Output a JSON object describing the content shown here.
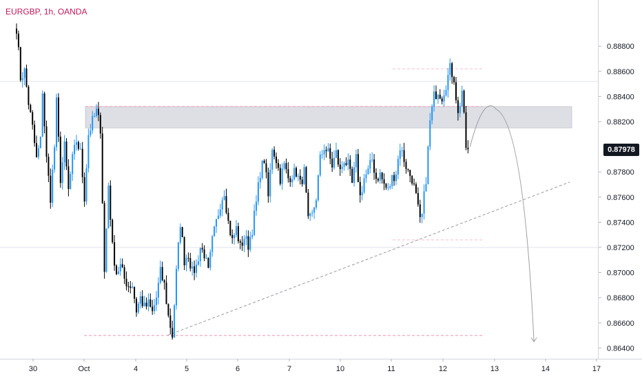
{
  "symbol": {
    "title": "EURGBP, 1h, OANDA"
  },
  "last_price": {
    "label": "0.87978",
    "value": 0.87978,
    "bg_color": "#131722"
  },
  "colors": {
    "up": "#2196f3",
    "down": "#000000",
    "resistance_zone": "#d1d4dc",
    "pink_line": "#f48fb1",
    "projection": "#9e9e9e"
  },
  "chart_data": {
    "type": "candlestick",
    "title": "EURGBP, 1h, OANDA",
    "xlabel": "",
    "ylabel": "",
    "ylim": [
      0.8626,
      0.8892
    ],
    "grid": true,
    "y_ticks": [
      "0.88800",
      "0.88600",
      "0.88400",
      "0.88200",
      "0.87800",
      "0.87600",
      "0.87400",
      "0.87200",
      "0.87000",
      "0.86800",
      "0.86600",
      "0.86400"
    ],
    "x_ticks": [
      "30",
      "Oct",
      "4",
      "5",
      "6",
      "7",
      "10",
      "11",
      "12",
      "13",
      "14",
      "17"
    ],
    "close_path": [
      [
        0,
        0.8895
      ],
      [
        2,
        0.8855
      ],
      [
        4,
        0.886
      ],
      [
        6,
        0.8835
      ],
      [
        8,
        0.8815
      ],
      [
        10,
        0.879
      ],
      [
        12,
        0.8805
      ],
      [
        13,
        0.8845
      ],
      [
        15,
        0.879
      ],
      [
        17,
        0.876
      ],
      [
        19,
        0.88
      ],
      [
        20,
        0.8835
      ],
      [
        22,
        0.8775
      ],
      [
        24,
        0.88
      ],
      [
        26,
        0.8765
      ],
      [
        28,
        0.879
      ],
      [
        30,
        0.8805
      ],
      [
        32,
        0.8795
      ],
      [
        34,
        0.876
      ],
      [
        36,
        0.881
      ],
      [
        38,
        0.882
      ],
      [
        40,
        0.8828
      ],
      [
        42,
        0.8815
      ],
      [
        44,
        0.87
      ],
      [
        46,
        0.877
      ],
      [
        48,
        0.872
      ],
      [
        50,
        0.87
      ],
      [
        52,
        0.8705
      ],
      [
        54,
        0.8695
      ],
      [
        56,
        0.869
      ],
      [
        58,
        0.869
      ],
      [
        60,
        0.867
      ],
      [
        62,
        0.868
      ],
      [
        64,
        0.8672
      ],
      [
        66,
        0.8675
      ],
      [
        68,
        0.8668
      ],
      [
        70,
        0.868
      ],
      [
        72,
        0.87
      ],
      [
        74,
        0.869
      ],
      [
        76,
        0.8665
      ],
      [
        78,
        0.865
      ],
      [
        80,
        0.87
      ],
      [
        82,
        0.874
      ],
      [
        84,
        0.871
      ],
      [
        86,
        0.8715
      ],
      [
        88,
        0.87
      ],
      [
        90,
        0.8705
      ],
      [
        92,
        0.872
      ],
      [
        94,
        0.8715
      ],
      [
        96,
        0.87
      ],
      [
        98,
        0.8725
      ],
      [
        100,
        0.874
      ],
      [
        102,
        0.8755
      ],
      [
        104,
        0.8765
      ],
      [
        106,
        0.874
      ],
      [
        108,
        0.8725
      ],
      [
        110,
        0.8735
      ],
      [
        112,
        0.872
      ],
      [
        114,
        0.8728
      ],
      [
        116,
        0.8722
      ],
      [
        118,
        0.8735
      ],
      [
        120,
        0.8755
      ],
      [
        122,
        0.878
      ],
      [
        124,
        0.879
      ],
      [
        126,
        0.876
      ],
      [
        128,
        0.88
      ],
      [
        130,
        0.879
      ],
      [
        132,
        0.8775
      ],
      [
        134,
        0.8785
      ],
      [
        136,
        0.8775
      ],
      [
        138,
        0.8778
      ],
      [
        140,
        0.878
      ],
      [
        142,
        0.877
      ],
      [
        144,
        0.878
      ],
      [
        146,
        0.874
      ],
      [
        148,
        0.8745
      ],
      [
        150,
        0.876
      ],
      [
        152,
        0.879
      ],
      [
        154,
        0.88
      ],
      [
        156,
        0.8795
      ],
      [
        158,
        0.8785
      ],
      [
        160,
        0.8795
      ],
      [
        162,
        0.878
      ],
      [
        164,
        0.879
      ],
      [
        166,
        0.8785
      ],
      [
        168,
        0.877
      ],
      [
        170,
        0.879
      ],
      [
        172,
        0.876
      ],
      [
        174,
        0.8775
      ],
      [
        176,
        0.878
      ],
      [
        178,
        0.879
      ],
      [
        180,
        0.8775
      ],
      [
        182,
        0.8778
      ],
      [
        184,
        0.877
      ],
      [
        186,
        0.8765
      ],
      [
        188,
        0.8775
      ],
      [
        190,
        0.878
      ],
      [
        192,
        0.88
      ],
      [
        194,
        0.879
      ],
      [
        196,
        0.878
      ],
      [
        198,
        0.8775
      ],
      [
        200,
        0.876
      ],
      [
        202,
        0.874
      ],
      [
        203,
        0.8745
      ],
      [
        205,
        0.8775
      ],
      [
        207,
        0.882
      ],
      [
        209,
        0.884
      ],
      [
        211,
        0.8845
      ],
      [
        213,
        0.884
      ],
      [
        215,
        0.885
      ],
      [
        217,
        0.8862
      ],
      [
        219,
        0.8855
      ],
      [
        221,
        0.8825
      ],
      [
        223,
        0.8845
      ],
      [
        225,
        0.88
      ],
      [
        226,
        0.8798
      ]
    ],
    "annotations": {
      "resistance_zone": [
        0.8815,
        0.8832
      ],
      "top_level": 0.8862,
      "mid_level": 0.8726,
      "low_level": 0.865,
      "trendline": [
        [
          75.5,
          0.865
        ],
        [
          277,
          0.8772
        ]
      ],
      "projection": [
        [
          227,
          0.88
        ],
        [
          240,
          0.883
        ],
        [
          259,
          0.8645
        ]
      ]
    }
  }
}
